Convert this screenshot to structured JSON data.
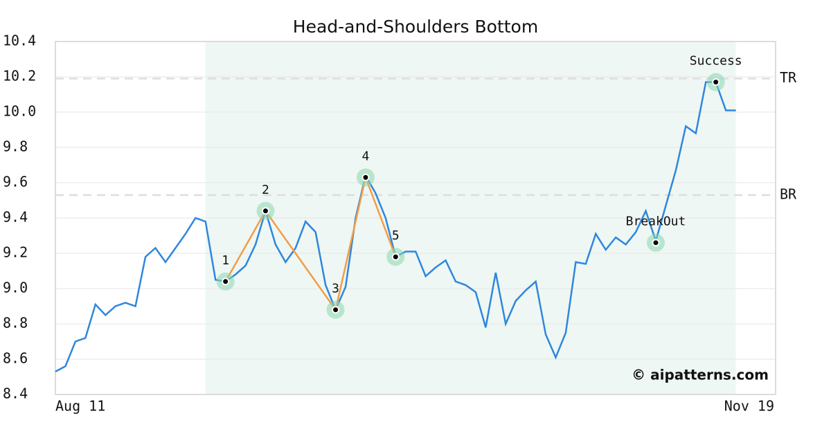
{
  "chart_data": {
    "type": "line",
    "title": "Head-and-Shoulders Bottom",
    "categories": [
      "Aug 11",
      null,
      null,
      null,
      null,
      null,
      null,
      null,
      null,
      null,
      null,
      null,
      null,
      null,
      null,
      null,
      null,
      null,
      null,
      null,
      null,
      null,
      null,
      null,
      null,
      null,
      null,
      null,
      null,
      null,
      null,
      null,
      null,
      null,
      null,
      null,
      null,
      null,
      null,
      null,
      null,
      null,
      null,
      null,
      null,
      null,
      null,
      null,
      null,
      null,
      null,
      null,
      null,
      null,
      null,
      null,
      null,
      null,
      null,
      null,
      null,
      null,
      null,
      null,
      null,
      null,
      null,
      null,
      "Nov 19"
    ],
    "series": [
      {
        "color": "#2e86de",
        "values": [
          8.53,
          8.56,
          8.7,
          8.72,
          8.91,
          8.85,
          8.9,
          8.92,
          8.9,
          9.18,
          9.23,
          9.15,
          9.23,
          9.31,
          9.4,
          9.38,
          9.05,
          9.04,
          9.08,
          9.13,
          9.25,
          9.44,
          9.25,
          9.15,
          9.23,
          9.38,
          9.32,
          9.02,
          8.88,
          9.01,
          9.4,
          9.64,
          9.54,
          9.4,
          9.18,
          9.21,
          9.21,
          9.07,
          9.12,
          9.16,
          9.04,
          9.02,
          8.98,
          8.78,
          9.09,
          8.8,
          8.93,
          8.99,
          9.04,
          8.74,
          8.61,
          8.75,
          9.15,
          9.14,
          9.31,
          9.22,
          9.29,
          9.25,
          9.32,
          9.44,
          9.27,
          9.47,
          9.67,
          9.92,
          9.88,
          10.17,
          10.17,
          10.01,
          10.01
        ]
      }
    ],
    "pattern": {
      "color": "#f39c45",
      "x": [
        17,
        21,
        28,
        31,
        34
      ],
      "values": [
        9.04,
        9.44,
        8.88,
        9.63,
        9.18
      ],
      "labels": [
        "1",
        "2",
        "3",
        "4",
        "5"
      ]
    },
    "events": [
      {
        "label": "BreakOut",
        "x": 60,
        "value": 9.26
      },
      {
        "label": "Success",
        "x": 66,
        "value": 10.17
      }
    ],
    "levels": [
      {
        "label": "TR",
        "value": 10.19
      },
      {
        "label": "BR",
        "value": 9.53
      }
    ],
    "highlight_range": [
      15,
      68
    ],
    "watermark": "© aipatterns.com",
    "ylim": [
      8.4,
      10.4
    ],
    "yticks": [
      8.4,
      8.6,
      8.8,
      {
        "value": 9,
        "label": "9.0"
      },
      9.2,
      9.4,
      9.6,
      9.8,
      {
        "value": 10,
        "label": "10.0"
      },
      10.2,
      10.4
    ],
    "grid": true
  }
}
